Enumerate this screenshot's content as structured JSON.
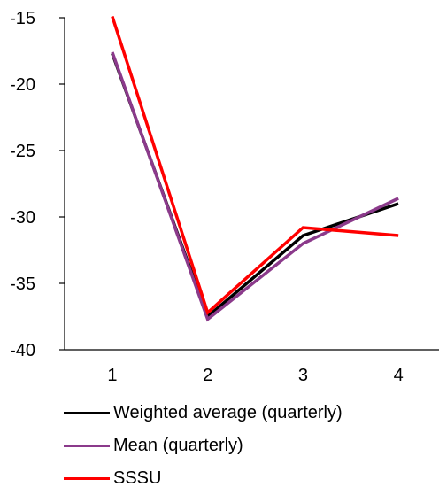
{
  "chart_data": {
    "type": "line",
    "x": [
      1,
      2,
      3,
      4
    ],
    "xticks": [
      "1",
      "2",
      "3",
      "4"
    ],
    "ylim": [
      -40,
      -15
    ],
    "yticks": [
      "-15",
      "-20",
      "-25",
      "-30",
      "-35",
      "-40"
    ],
    "ytick_values": [
      -15,
      -20,
      -25,
      -30,
      -35,
      -40
    ],
    "xlabel": "",
    "ylabel": "",
    "title": "",
    "grid": false,
    "legend_position": "bottom",
    "series": [
      {
        "name": "Weighted average (quarterly)",
        "color": "#000000",
        "values": [
          -17.7,
          -37.5,
          -31.4,
          -29.0
        ]
      },
      {
        "name": "Mean (quarterly)",
        "color": "#8B3A8B",
        "values": [
          -17.6,
          -37.7,
          -32.0,
          -28.6
        ]
      },
      {
        "name": "SSSU",
        "color": "#FF0000",
        "values": [
          -14.9,
          -37.2,
          -30.8,
          -31.4
        ]
      }
    ]
  }
}
